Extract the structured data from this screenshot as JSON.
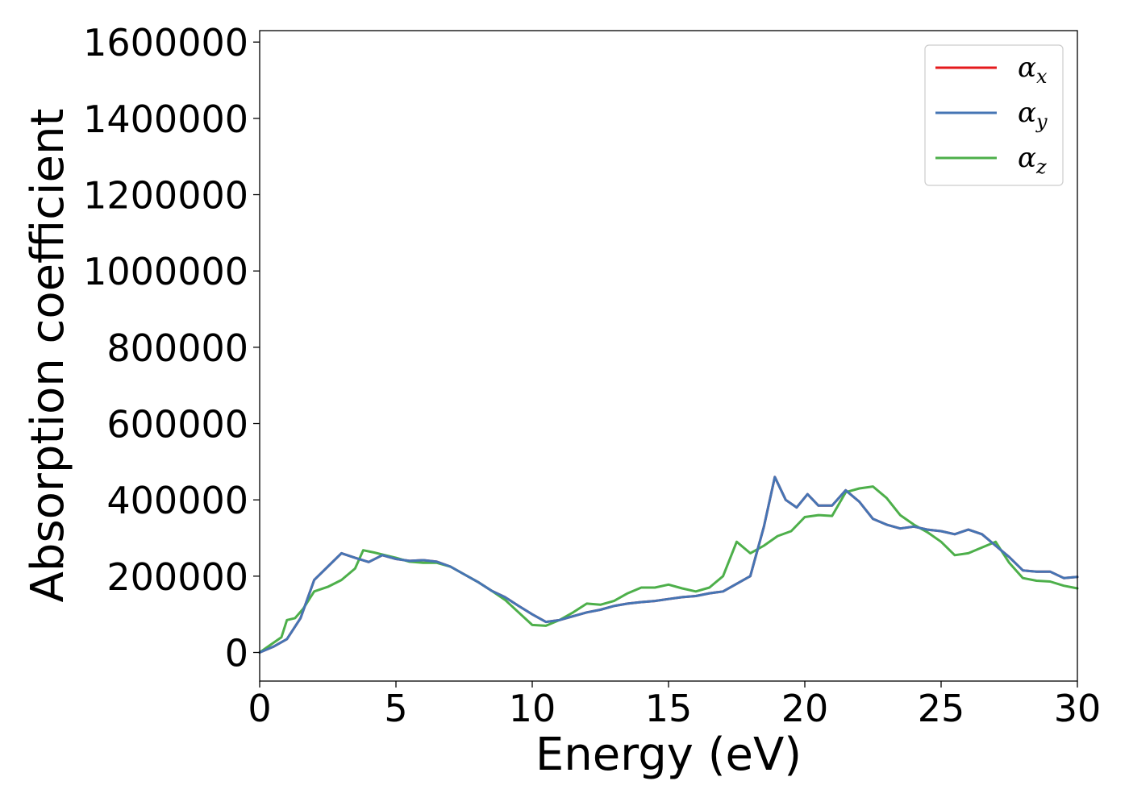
{
  "chart_data": {
    "type": "line",
    "xlabel": "Energy (eV)",
    "ylabel": "Absorption coefficient",
    "xlim": [
      0,
      30
    ],
    "ylim": [
      -75000,
      1630000
    ],
    "xticks": [
      "0",
      "5",
      "10",
      "15",
      "20",
      "25",
      "30"
    ],
    "yticks": [
      "0",
      "200000",
      "400000",
      "600000",
      "800000",
      "1000000",
      "1200000",
      "1400000",
      "1600000"
    ],
    "grid": false,
    "legend_position": "top-right",
    "legend_symbol": "α",
    "series": [
      {
        "name": "x",
        "color": "#e41a1c",
        "x": [
          0,
          0.5,
          1.0,
          1.5,
          2.0,
          2.5,
          3.0,
          3.5,
          4.0,
          4.5,
          5.0,
          5.5,
          6.0,
          6.5,
          7.0,
          7.5,
          8.0,
          8.5,
          9.0,
          9.5,
          10.0,
          10.5,
          11.0,
          11.5,
          12.0,
          12.5,
          13.0,
          13.5,
          14.0,
          14.5,
          15.0,
          15.5,
          16.0,
          16.5,
          17.0,
          17.5,
          18.0,
          18.5,
          18.9,
          19.3,
          19.7,
          20.1,
          20.5,
          21.0,
          21.5,
          22.0,
          22.5,
          23.0,
          23.5,
          24.0,
          24.5,
          25.0,
          25.5,
          26.0,
          26.5,
          27.0,
          27.5,
          28.0,
          28.5,
          29.0,
          29.5,
          30.0
        ],
        "values": [
          0,
          15000,
          35000,
          90000,
          190000,
          225000,
          260000,
          248000,
          237000,
          255000,
          245000,
          240000,
          242000,
          238000,
          225000,
          205000,
          185000,
          162000,
          145000,
          122000,
          100000,
          80000,
          85000,
          95000,
          105000,
          112000,
          122000,
          128000,
          132000,
          135000,
          140000,
          145000,
          148000,
          155000,
          160000,
          180000,
          200000,
          330000,
          460000,
          400000,
          380000,
          415000,
          385000,
          385000,
          425000,
          395000,
          350000,
          335000,
          325000,
          330000,
          322000,
          318000,
          310000,
          322000,
          310000,
          280000,
          250000,
          215000,
          212000,
          212000,
          195000,
          198000
        ]
      },
      {
        "name": "y",
        "color": "#4575b4",
        "x": [
          0,
          0.5,
          1.0,
          1.5,
          2.0,
          2.5,
          3.0,
          3.5,
          4.0,
          4.5,
          5.0,
          5.5,
          6.0,
          6.5,
          7.0,
          7.5,
          8.0,
          8.5,
          9.0,
          9.5,
          10.0,
          10.5,
          11.0,
          11.5,
          12.0,
          12.5,
          13.0,
          13.5,
          14.0,
          14.5,
          15.0,
          15.5,
          16.0,
          16.5,
          17.0,
          17.5,
          18.0,
          18.5,
          18.9,
          19.3,
          19.7,
          20.1,
          20.5,
          21.0,
          21.5,
          22.0,
          22.5,
          23.0,
          23.5,
          24.0,
          24.5,
          25.0,
          25.5,
          26.0,
          26.5,
          27.0,
          27.5,
          28.0,
          28.5,
          29.0,
          29.5,
          30.0
        ],
        "values": [
          0,
          15000,
          35000,
          90000,
          190000,
          225000,
          260000,
          248000,
          237000,
          255000,
          245000,
          240000,
          242000,
          238000,
          225000,
          205000,
          185000,
          162000,
          145000,
          122000,
          100000,
          80000,
          85000,
          95000,
          105000,
          112000,
          122000,
          128000,
          132000,
          135000,
          140000,
          145000,
          148000,
          155000,
          160000,
          180000,
          200000,
          330000,
          460000,
          400000,
          380000,
          415000,
          385000,
          385000,
          425000,
          395000,
          350000,
          335000,
          325000,
          330000,
          322000,
          318000,
          310000,
          322000,
          310000,
          280000,
          250000,
          215000,
          212000,
          212000,
          195000,
          198000
        ]
      },
      {
        "name": "z",
        "color": "#4daf4a",
        "x": [
          0,
          0.4,
          0.8,
          1.0,
          1.3,
          1.6,
          2.0,
          2.5,
          3.0,
          3.5,
          3.8,
          4.2,
          4.6,
          5.0,
          5.5,
          6.0,
          6.5,
          7.0,
          7.5,
          8.0,
          8.5,
          9.0,
          9.5,
          10.0,
          10.5,
          11.0,
          11.5,
          12.0,
          12.5,
          13.0,
          13.5,
          14.0,
          14.5,
          15.0,
          15.5,
          16.0,
          16.5,
          17.0,
          17.5,
          18.0,
          18.5,
          19.0,
          19.5,
          20.0,
          20.5,
          21.0,
          21.5,
          22.0,
          22.5,
          23.0,
          23.5,
          24.0,
          24.5,
          25.0,
          25.5,
          26.0,
          26.5,
          27.0,
          27.5,
          28.0,
          28.5,
          29.0,
          29.5,
          30.0
        ],
        "values": [
          0,
          20000,
          40000,
          85000,
          90000,
          115000,
          160000,
          172000,
          190000,
          220000,
          268000,
          262000,
          255000,
          248000,
          238000,
          235000,
          235000,
          225000,
          205000,
          185000,
          162000,
          138000,
          105000,
          72000,
          70000,
          85000,
          105000,
          128000,
          125000,
          135000,
          155000,
          170000,
          170000,
          178000,
          168000,
          160000,
          170000,
          200000,
          290000,
          260000,
          280000,
          305000,
          318000,
          355000,
          360000,
          358000,
          420000,
          430000,
          435000,
          405000,
          360000,
          335000,
          315000,
          290000,
          255000,
          260000,
          275000,
          290000,
          235000,
          195000,
          188000,
          186000,
          175000,
          168000
        ]
      }
    ]
  }
}
